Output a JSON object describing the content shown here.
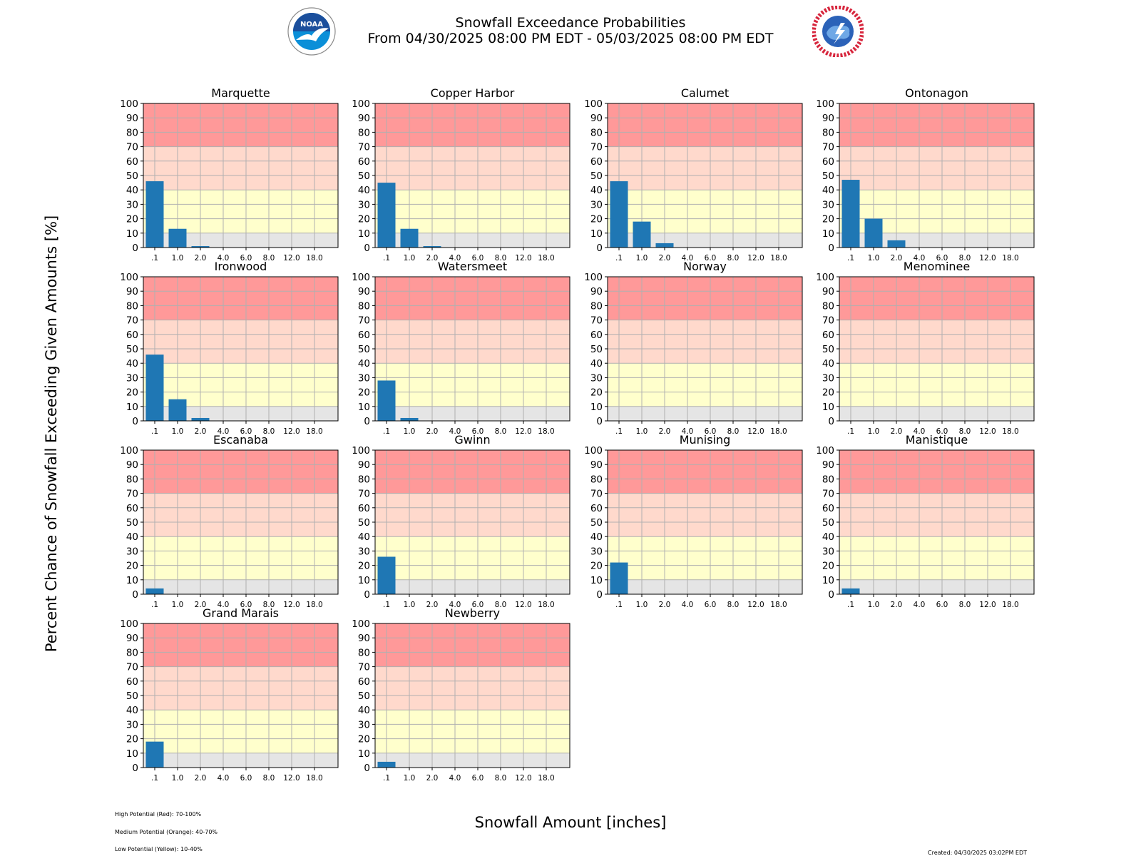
{
  "header": {
    "title": "Snowfall Exceedance Probabilities",
    "subtitle": "From 04/30/2025 08:00 PM EDT - 05/03/2025 08:00 PM EDT"
  },
  "logos": {
    "left_icon": "noaa-logo-icon",
    "right_icon": "nws-logo-icon",
    "left_text": "NOAA",
    "right_text": "NATIONAL WEATHER SERVICE"
  },
  "axis": {
    "xlabel": "Snowfall Amount [inches]",
    "ylabel": "Percent Chance of Snowfall Exceeding Given Amounts [%]"
  },
  "legend": {
    "high": "High Potential (Red): 70-100%",
    "medium": "Medium Potential (Orange): 40-70%",
    "low": "Low Potential (Yellow): 10-40%"
  },
  "footer": {
    "created": "Created: 04/30/2025 03:02PM EDT"
  },
  "colors": {
    "bar": "#1f77b4",
    "band_high": "#ff9999",
    "band_medium": "#ffd9cc",
    "band_low": "#ffffcc",
    "band_none": "#e5e5e5",
    "grid": "#b0b0b0"
  },
  "chart_data": {
    "type": "bar",
    "categories": [
      ".1",
      "1.0",
      "2.0",
      "4.0",
      "6.0",
      "8.0",
      "12.0",
      "18.0"
    ],
    "ylim": [
      0,
      100
    ],
    "yticks": [
      0,
      10,
      20,
      30,
      40,
      50,
      60,
      70,
      80,
      90,
      100
    ],
    "grid": true,
    "bands": [
      {
        "from": 0,
        "to": 10,
        "color": "#e5e5e5"
      },
      {
        "from": 10,
        "to": 40,
        "color": "#ffffcc"
      },
      {
        "from": 40,
        "to": 70,
        "color": "#ffd9cc"
      },
      {
        "from": 70,
        "to": 100,
        "color": "#ff9999"
      }
    ],
    "panels": [
      {
        "name": "Marquette",
        "values": [
          46,
          13,
          1,
          0,
          0,
          0,
          0,
          0
        ]
      },
      {
        "name": "Copper Harbor",
        "values": [
          45,
          13,
          1,
          0,
          0,
          0,
          0,
          0
        ]
      },
      {
        "name": "Calumet",
        "values": [
          46,
          18,
          3,
          0,
          0,
          0,
          0,
          0
        ]
      },
      {
        "name": "Ontonagon",
        "values": [
          47,
          20,
          5,
          0,
          0,
          0,
          0,
          0
        ]
      },
      {
        "name": "Ironwood",
        "values": [
          46,
          15,
          2,
          0,
          0,
          0,
          0,
          0
        ]
      },
      {
        "name": "Watersmeet",
        "values": [
          28,
          2,
          0,
          0,
          0,
          0,
          0,
          0
        ]
      },
      {
        "name": "Norway",
        "values": [
          0,
          0,
          0,
          0,
          0,
          0,
          0,
          0
        ]
      },
      {
        "name": "Menominee",
        "values": [
          0,
          0,
          0,
          0,
          0,
          0,
          0,
          0
        ]
      },
      {
        "name": "Escanaba",
        "values": [
          4,
          0,
          0,
          0,
          0,
          0,
          0,
          0
        ]
      },
      {
        "name": "Gwinn",
        "values": [
          26,
          0,
          0,
          0,
          0,
          0,
          0,
          0
        ]
      },
      {
        "name": "Munising",
        "values": [
          22,
          0,
          0,
          0,
          0,
          0,
          0,
          0
        ]
      },
      {
        "name": "Manistique",
        "values": [
          4,
          0,
          0,
          0,
          0,
          0,
          0,
          0
        ]
      },
      {
        "name": "Grand Marais",
        "values": [
          18,
          0,
          0,
          0,
          0,
          0,
          0,
          0
        ]
      },
      {
        "name": "Newberry",
        "values": [
          4,
          0,
          0,
          0,
          0,
          0,
          0,
          0
        ]
      }
    ]
  }
}
